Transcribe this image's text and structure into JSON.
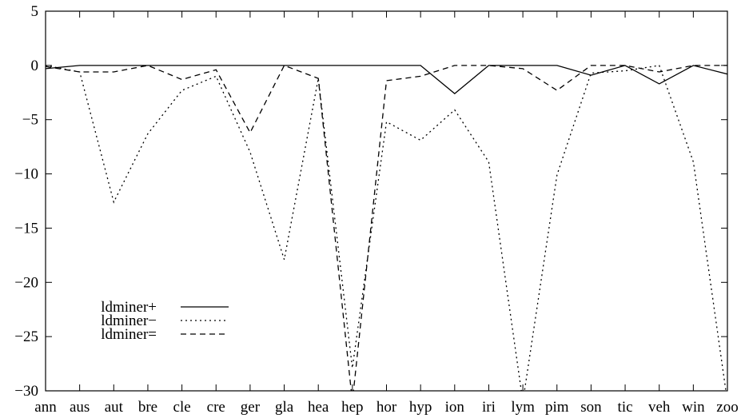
{
  "chart_data": {
    "type": "line",
    "title": "",
    "xlabel": "",
    "ylabel": "",
    "ylim": [
      -30,
      5
    ],
    "yticks": [
      "5",
      "0",
      "−5",
      "−10",
      "−15",
      "−20",
      "−25",
      "−30"
    ],
    "ytick_values": [
      5,
      0,
      -5,
      -10,
      -15,
      -20,
      -25,
      -30
    ],
    "categories": [
      "ann",
      "aus",
      "aut",
      "bre",
      "cle",
      "cre",
      "ger",
      "gla",
      "hea",
      "hep",
      "hor",
      "hyp",
      "ion",
      "iri",
      "lym",
      "pim",
      "son",
      "tic",
      "veh",
      "win",
      "zoo"
    ],
    "grid": false,
    "legend_position": "lower-left",
    "series": [
      {
        "name": "ldminer+",
        "dash": "solid",
        "values": [
          -0.3,
          0,
          0,
          0,
          0,
          0,
          0,
          0,
          0,
          0,
          0,
          0,
          -2.6,
          0,
          0,
          0,
          -0.9,
          0,
          -1.7,
          0,
          -0.8
        ]
      },
      {
        "name": "ldminer−",
        "dash": "dotted",
        "values": [
          0,
          -0.6,
          -12.6,
          -6.3,
          -2.3,
          -1.0,
          -8.0,
          -17.9,
          -1.2,
          -27.9,
          -5.2,
          -6.9,
          -4.1,
          -8.9,
          -31,
          -10.1,
          -0.7,
          -0.5,
          0,
          -8.9,
          -31
        ]
      },
      {
        "name": "ldminer=",
        "dash": "dashed",
        "values": [
          -0.1,
          -0.6,
          -0.6,
          0,
          -1.3,
          -0.4,
          -6.2,
          0,
          -1.2,
          -31,
          -1.4,
          -1.0,
          0,
          0,
          -0.3,
          -2.3,
          0,
          0,
          -0.6,
          0,
          0
        ]
      }
    ]
  }
}
